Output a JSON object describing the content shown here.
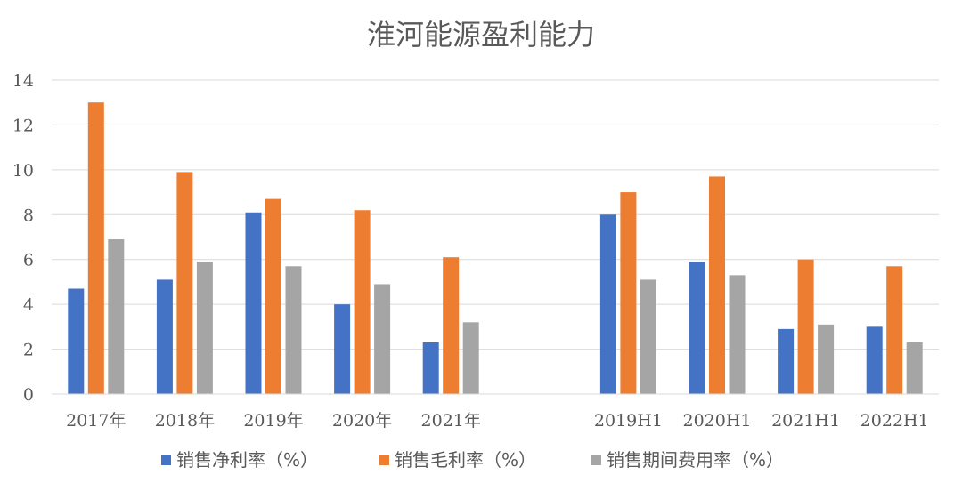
{
  "chart_data": {
    "type": "bar",
    "title": "淮河能源盈利能力",
    "xlabel": "",
    "ylabel": "",
    "ylim": [
      0,
      14
    ],
    "yticks": [
      0,
      2,
      4,
      6,
      8,
      10,
      12,
      14
    ],
    "grid": true,
    "legend": "bottom",
    "categories": [
      "2017年",
      "2018年",
      "2019年",
      "2020年",
      "2021年",
      "",
      "2019H1",
      "2020H1",
      "2021H1",
      "2022H1"
    ],
    "series": [
      {
        "name": "销售净利率（%）",
        "color": "#4472C4",
        "values": [
          4.7,
          5.1,
          8.1,
          4.0,
          2.3,
          null,
          8.0,
          5.9,
          2.9,
          3.0
        ]
      },
      {
        "name": "销售毛利率（%）",
        "color": "#ED7D31",
        "values": [
          13.0,
          9.9,
          8.7,
          8.2,
          6.1,
          null,
          9.0,
          9.7,
          6.0,
          5.7
        ]
      },
      {
        "name": "销售期间费用率（%）",
        "color": "#A5A5A5",
        "values": [
          6.9,
          5.9,
          5.7,
          4.9,
          3.2,
          null,
          5.1,
          5.3,
          3.1,
          2.3
        ]
      }
    ]
  }
}
